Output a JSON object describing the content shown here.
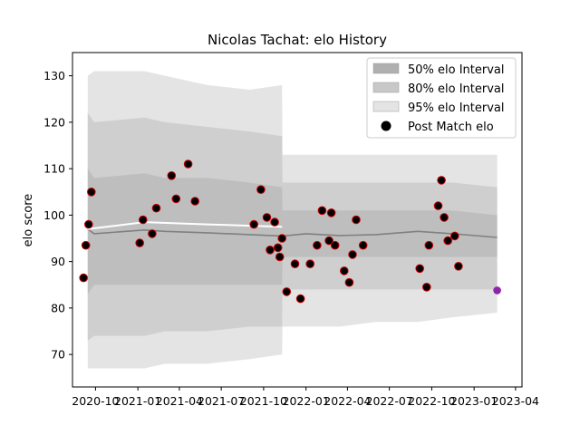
{
  "chart_data": {
    "type": "line",
    "title": "Nicolas Tachat: elo History",
    "xlabel": "",
    "ylabel": "elo score",
    "xlim": [
      "2020-08-12",
      "2023-04-15"
    ],
    "ylim": [
      63,
      135
    ],
    "y_ticks": [
      70,
      80,
      90,
      100,
      110,
      120,
      130
    ],
    "x_ticks": [
      {
        "date": "2020-10-01",
        "label": "2020-10"
      },
      {
        "date": "2021-01-01",
        "label": "2021-01"
      },
      {
        "date": "2021-04-01",
        "label": "2021-04"
      },
      {
        "date": "2021-07-01",
        "label": "2021-07"
      },
      {
        "date": "2021-10-01",
        "label": "2021-10"
      },
      {
        "date": "2022-01-01",
        "label": "2022-01"
      },
      {
        "date": "2022-04-01",
        "label": "2022-04"
      },
      {
        "date": "2022-07-01",
        "label": "2022-07"
      },
      {
        "date": "2022-10-01",
        "label": "2022-10"
      },
      {
        "date": "2023-01-01",
        "label": "2023-01"
      },
      {
        "date": "2023-04-01",
        "label": "2023-04"
      }
    ],
    "legend": {
      "placement": "top-right",
      "entries": [
        {
          "label": "50% elo Interval",
          "color": "#b0b0b0"
        },
        {
          "label": "80% elo Interval",
          "color": "#c8c8c8"
        },
        {
          "label": "95% elo Interval",
          "color": "#e4e4e4"
        },
        {
          "label": "Post Match elo",
          "color": "#000000"
        }
      ]
    },
    "colors": {
      "band50": "#b0b0b0",
      "band80": "#c8c8c8",
      "band95": "#e4e4e4",
      "mean_line": "#808080",
      "highlight_line": "#ffffff",
      "marker_face": "#000000",
      "marker_edge": "#cc0000",
      "forecast_marker": "#8e24aa"
    },
    "band_dates": [
      "2020-09-14",
      "2020-09-28",
      "2021-01-15",
      "2021-03-01",
      "2021-06-01",
      "2021-09-01",
      "2021-11-10",
      "2021-11-11",
      "2022-01-01",
      "2022-03-15",
      "2022-06-01",
      "2022-09-01",
      "2022-11-15",
      "2023-02-20"
    ],
    "mean_series": [
      97.0,
      96.0,
      96.8,
      96.5,
      96.2,
      95.8,
      95.5,
      95.5,
      96.0,
      95.6,
      95.8,
      96.5,
      96.0,
      95.2
    ],
    "band50_lower": [
      83,
      85,
      85,
      85,
      85,
      85,
      85,
      91,
      91,
      91,
      91,
      91,
      91,
      91
    ],
    "band50_upper": [
      110,
      108,
      109,
      108,
      108,
      107,
      106,
      101,
      101,
      101,
      101,
      101,
      101,
      100
    ],
    "band80_lower": [
      73,
      74,
      74,
      75,
      75,
      76,
      76,
      84,
      84,
      84,
      84,
      84,
      84,
      84
    ],
    "band80_upper": [
      122,
      120,
      121,
      120,
      119,
      118,
      117,
      107,
      107,
      107,
      107,
      107,
      107,
      106
    ],
    "band95_lower": [
      67,
      67,
      67,
      68,
      68,
      69,
      70,
      76,
      76,
      76,
      77,
      77,
      78,
      79
    ],
    "band95_upper": [
      130,
      131,
      131,
      130,
      128,
      127,
      128,
      113,
      113,
      113,
      113,
      113,
      113,
      113
    ],
    "white_line_dates": [
      "2020-09-14",
      "2021-01-15",
      "2021-06-01",
      "2021-11-10"
    ],
    "white_line_values": [
      97.0,
      98.5,
      98.0,
      97.5
    ],
    "post_match_elo": {
      "x": [
        "2020-09-05",
        "2020-09-10",
        "2020-09-16",
        "2020-09-22",
        "2021-01-05",
        "2021-01-12",
        "2021-02-01",
        "2021-02-10",
        "2021-03-15",
        "2021-03-25",
        "2021-04-20",
        "2021-05-05",
        "2021-09-10",
        "2021-09-25",
        "2021-10-08",
        "2021-10-15",
        "2021-10-25",
        "2021-11-01",
        "2021-11-05",
        "2021-11-10",
        "2021-11-20",
        "2021-12-08",
        "2021-12-20",
        "2022-01-10",
        "2022-01-25",
        "2022-02-05",
        "2022-02-20",
        "2022-02-25",
        "2022-03-05",
        "2022-03-25",
        "2022-04-05",
        "2022-04-12",
        "2022-04-20",
        "2022-05-05",
        "2022-09-05",
        "2022-09-20",
        "2022-09-25",
        "2022-10-15",
        "2022-10-22",
        "2022-10-28",
        "2022-11-05",
        "2022-11-20",
        "2022-11-28"
      ],
      "y": [
        86.5,
        93.5,
        98.0,
        105.0,
        94.0,
        99.0,
        96.0,
        101.5,
        108.5,
        103.5,
        111.0,
        103.0,
        98.0,
        105.5,
        99.5,
        92.5,
        98.5,
        93.0,
        91.0,
        95.0,
        83.5,
        89.5,
        82.0,
        89.5,
        93.5,
        101.0,
        94.5,
        100.5,
        93.5,
        88.0,
        85.5,
        91.5,
        99.0,
        93.5,
        88.5,
        84.5,
        93.5,
        102.0,
        107.5,
        99.5,
        94.5,
        95.5,
        89.0
      ]
    },
    "forecast": {
      "x": "2023-02-20",
      "y": 83.8
    }
  }
}
